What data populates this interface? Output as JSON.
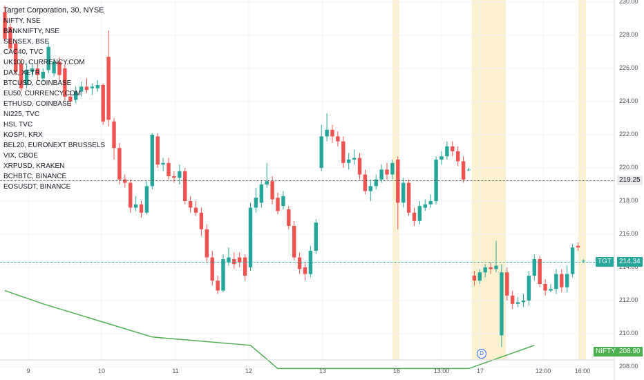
{
  "header": {
    "title": "Target Corporation, 30, NYSE"
  },
  "comparison_symbols": [
    "NIFTY, NSE",
    "BANKNIFTY, NSE",
    "SENSEX, BSE",
    "CAC40, TVC",
    "UK100, CURRENCY.COM",
    "DAX, XETR",
    "BTCUSD, COINBASE",
    "EU50, CURRENCY.COM",
    "ETHUSD, COINBASE",
    "NI225, TVC",
    "HSI, TVC",
    "KOSPI, KRX",
    "BEL20, EURONEXT BRUSSELS",
    "VIX, CBOE",
    "XRPUSD, KRAKEN",
    "BCHBTC, BINANCE",
    "EOSUSDT, BINANCE"
  ],
  "price_labels": {
    "last_price": "219.25",
    "tgt_tag": "TGT",
    "tgt_price": "214.34",
    "nifty_tag": "NIFTY",
    "nifty_price": "208.90"
  },
  "dividend_marker": "D",
  "colors": {
    "up": "#26a69a",
    "down": "#ef5350",
    "nifty_line": "#4caf50",
    "session_highlight": "#fdf2d0",
    "tgt_tag_bg": "#26a69a",
    "nifty_tag_bg": "#4caf50"
  },
  "chart_data": {
    "type": "candlestick",
    "title": "Target Corporation, 30, NYSE",
    "ylim": [
      208,
      230
    ],
    "yticks": [
      "230.00",
      "228.00",
      "226.00",
      "224.00",
      "222.00",
      "220.00",
      "218.00",
      "216.00",
      "214.00",
      "212.00",
      "210.00",
      "208.00"
    ],
    "xticks": [
      "9",
      "10",
      "11",
      "12",
      "13",
      "16",
      "13:00",
      "17",
      "12:00",
      "16:00"
    ],
    "grid": true,
    "legend": "top-left",
    "candles": [
      {
        "o": 229.4,
        "c": 227.8,
        "h": 229.8,
        "l": 227.6
      },
      {
        "o": 228.5,
        "c": 227.2,
        "h": 228.7,
        "l": 227.0
      },
      {
        "o": 227.5,
        "c": 225.8,
        "h": 227.7,
        "l": 225.6
      },
      {
        "o": 226.3,
        "c": 224.8,
        "h": 226.6,
        "l": 224.6
      },
      {
        "o": 225.0,
        "c": 225.9,
        "h": 226.3,
        "l": 224.8
      },
      {
        "o": 225.8,
        "c": 226.0,
        "h": 226.3,
        "l": 225.5
      },
      {
        "o": 226.0,
        "c": 225.6,
        "h": 226.3,
        "l": 225.3
      },
      {
        "o": 225.4,
        "c": 225.8,
        "h": 226.0,
        "l": 225.2
      },
      {
        "o": 225.9,
        "c": 227.3,
        "h": 227.6,
        "l": 225.7
      },
      {
        "o": 225.7,
        "c": 226.4,
        "h": 226.6,
        "l": 225.5
      },
      {
        "o": 226.4,
        "c": 225.6,
        "h": 226.7,
        "l": 225.3
      },
      {
        "o": 226.0,
        "c": 224.3,
        "h": 226.3,
        "l": 224.0
      },
      {
        "o": 224.3,
        "c": 224.0,
        "h": 224.6,
        "l": 223.7
      },
      {
        "o": 224.1,
        "c": 224.6,
        "h": 224.9,
        "l": 223.9
      },
      {
        "o": 224.6,
        "c": 224.9,
        "h": 225.2,
        "l": 224.3
      },
      {
        "o": 224.9,
        "c": 224.7,
        "h": 225.4,
        "l": 224.5
      },
      {
        "o": 224.8,
        "c": 224.9,
        "h": 225.1,
        "l": 224.4
      },
      {
        "o": 224.8,
        "c": 225.0,
        "h": 225.3,
        "l": 224.6
      },
      {
        "o": 225.0,
        "c": 222.8,
        "h": 225.1,
        "l": 222.6
      },
      {
        "o": 226.7,
        "c": 222.9,
        "h": 228.3,
        "l": 222.5
      },
      {
        "o": 222.8,
        "c": 221.2,
        "h": 223.0,
        "l": 220.5
      },
      {
        "o": 221.2,
        "c": 219.3,
        "h": 221.5,
        "l": 219.0
      },
      {
        "o": 219.3,
        "c": 219.1,
        "h": 219.6,
        "l": 218.8
      },
      {
        "o": 219.1,
        "c": 217.6,
        "h": 219.3,
        "l": 217.3
      },
      {
        "o": 217.6,
        "c": 217.8,
        "h": 218.3,
        "l": 217.4
      },
      {
        "o": 217.8,
        "c": 217.3,
        "h": 218.0,
        "l": 217.0
      },
      {
        "o": 217.3,
        "c": 218.9,
        "h": 219.2,
        "l": 217.2
      },
      {
        "o": 218.9,
        "c": 222.0,
        "h": 222.1,
        "l": 218.7
      },
      {
        "o": 221.9,
        "c": 220.2,
        "h": 222.1,
        "l": 220.0
      },
      {
        "o": 220.2,
        "c": 220.3,
        "h": 220.6,
        "l": 219.8
      },
      {
        "o": 220.3,
        "c": 219.5,
        "h": 220.6,
        "l": 219.3
      },
      {
        "o": 219.5,
        "c": 219.4,
        "h": 219.8,
        "l": 219.1
      },
      {
        "o": 219.4,
        "c": 219.8,
        "h": 220.2,
        "l": 219.0
      },
      {
        "o": 219.8,
        "c": 218.0,
        "h": 220.0,
        "l": 217.8
      },
      {
        "o": 218.0,
        "c": 217.6,
        "h": 218.3,
        "l": 217.3
      },
      {
        "o": 217.6,
        "c": 217.3,
        "h": 218.0,
        "l": 217.1
      },
      {
        "o": 217.3,
        "c": 216.3,
        "h": 217.6,
        "l": 215.9
      },
      {
        "o": 216.3,
        "c": 214.6,
        "h": 216.6,
        "l": 214.3
      },
      {
        "o": 214.6,
        "c": 213.2,
        "h": 215.0,
        "l": 212.9
      },
      {
        "o": 213.2,
        "c": 212.6,
        "h": 213.5,
        "l": 212.4
      },
      {
        "o": 212.6,
        "c": 214.5,
        "h": 214.8,
        "l": 212.5
      },
      {
        "o": 214.3,
        "c": 214.6,
        "h": 215.2,
        "l": 214.1
      },
      {
        "o": 214.5,
        "c": 214.2,
        "h": 214.9,
        "l": 213.9
      },
      {
        "o": 214.6,
        "c": 214.3,
        "h": 214.9,
        "l": 214.0
      },
      {
        "o": 214.6,
        "c": 213.5,
        "h": 214.8,
        "l": 213.2
      },
      {
        "o": 214.0,
        "c": 217.6,
        "h": 217.9,
        "l": 213.8
      },
      {
        "o": 217.6,
        "c": 218.2,
        "h": 218.8,
        "l": 217.3
      },
      {
        "o": 217.9,
        "c": 219.0,
        "h": 219.2,
        "l": 217.6
      },
      {
        "o": 219.0,
        "c": 219.2,
        "h": 220.3,
        "l": 218.8
      },
      {
        "o": 219.2,
        "c": 218.1,
        "h": 219.5,
        "l": 217.8
      },
      {
        "o": 218.2,
        "c": 217.4,
        "h": 218.5,
        "l": 217.2
      },
      {
        "o": 217.7,
        "c": 218.3,
        "h": 218.6,
        "l": 217.5
      },
      {
        "o": 217.5,
        "c": 216.5,
        "h": 217.7,
        "l": 216.3
      },
      {
        "o": 216.5,
        "c": 214.6,
        "h": 216.8,
        "l": 214.4
      },
      {
        "o": 214.6,
        "c": 213.9,
        "h": 214.9,
        "l": 213.6
      },
      {
        "o": 214.0,
        "c": 213.6,
        "h": 214.3,
        "l": 213.2
      },
      {
        "o": 213.6,
        "c": 215.0,
        "h": 215.3,
        "l": 213.4
      },
      {
        "o": 215.0,
        "c": 216.7,
        "h": 216.9,
        "l": 214.8
      },
      {
        "o": 220.0,
        "c": 221.9,
        "h": 222.6,
        "l": 219.8
      },
      {
        "o": 221.9,
        "c": 222.3,
        "h": 223.3,
        "l": 221.6
      },
      {
        "o": 222.3,
        "c": 221.9,
        "h": 222.6,
        "l": 221.5
      },
      {
        "o": 221.9,
        "c": 221.6,
        "h": 222.2,
        "l": 221.3
      },
      {
        "o": 221.6,
        "c": 220.3,
        "h": 221.9,
        "l": 220.0
      },
      {
        "o": 220.3,
        "c": 220.5,
        "h": 220.9,
        "l": 219.9
      },
      {
        "o": 220.5,
        "c": 220.6,
        "h": 221.1,
        "l": 220.2
      },
      {
        "o": 220.6,
        "c": 219.6,
        "h": 220.9,
        "l": 219.3
      },
      {
        "o": 219.6,
        "c": 218.6,
        "h": 219.9,
        "l": 218.4
      },
      {
        "o": 218.6,
        "c": 218.9,
        "h": 219.3,
        "l": 218.0
      },
      {
        "o": 218.9,
        "c": 219.3,
        "h": 219.6,
        "l": 218.7
      },
      {
        "o": 219.3,
        "c": 219.9,
        "h": 220.2,
        "l": 219.1
      },
      {
        "o": 219.9,
        "c": 219.6,
        "h": 220.3,
        "l": 219.3
      },
      {
        "o": 219.6,
        "c": 220.3,
        "h": 220.5,
        "l": 219.3
      },
      {
        "o": 220.5,
        "c": 217.9,
        "h": 220.7,
        "l": 216.3
      },
      {
        "o": 217.9,
        "c": 219.1,
        "h": 219.4,
        "l": 217.6
      },
      {
        "o": 219.1,
        "c": 217.3,
        "h": 219.3,
        "l": 217.1
      },
      {
        "o": 217.3,
        "c": 216.8,
        "h": 217.6,
        "l": 216.5
      },
      {
        "o": 216.8,
        "c": 217.7,
        "h": 218.0,
        "l": 216.6
      },
      {
        "o": 217.6,
        "c": 217.8,
        "h": 218.1,
        "l": 217.4
      },
      {
        "o": 217.8,
        "c": 218.0,
        "h": 218.4,
        "l": 217.6
      },
      {
        "o": 218.0,
        "c": 220.5,
        "h": 220.7,
        "l": 217.8
      },
      {
        "o": 220.5,
        "c": 220.7,
        "h": 221.0,
        "l": 220.2
      },
      {
        "o": 220.7,
        "c": 221.3,
        "h": 221.6,
        "l": 220.5
      },
      {
        "o": 221.3,
        "c": 221.0,
        "h": 221.6,
        "l": 220.7
      },
      {
        "o": 221.0,
        "c": 220.4,
        "h": 221.3,
        "l": 220.1
      },
      {
        "o": 220.4,
        "c": 219.3,
        "h": 220.7,
        "l": 219.1
      },
      {
        "o": 219.9,
        "c": 219.9,
        "h": 220.0,
        "l": 219.8
      },
      {
        "o": 213.5,
        "c": 213.2,
        "h": 213.8,
        "l": 212.9
      },
      {
        "o": 213.2,
        "c": 213.7,
        "h": 213.9,
        "l": 213.0
      },
      {
        "o": 213.7,
        "c": 214.0,
        "h": 214.2,
        "l": 213.4
      },
      {
        "o": 214.0,
        "c": 213.9,
        "h": 214.3,
        "l": 213.6
      },
      {
        "o": 213.9,
        "c": 214.1,
        "h": 215.6,
        "l": 213.7
      },
      {
        "o": 209.9,
        "c": 213.7,
        "h": 214.2,
        "l": 209.2
      },
      {
        "o": 213.7,
        "c": 212.3,
        "h": 214.0,
        "l": 212.0
      },
      {
        "o": 212.3,
        "c": 211.8,
        "h": 212.6,
        "l": 211.5
      },
      {
        "o": 211.8,
        "c": 211.9,
        "h": 212.2,
        "l": 211.6
      },
      {
        "o": 211.9,
        "c": 212.0,
        "h": 212.4,
        "l": 211.6
      },
      {
        "o": 212.0,
        "c": 213.5,
        "h": 213.8,
        "l": 211.7
      },
      {
        "o": 213.5,
        "c": 214.5,
        "h": 214.8,
        "l": 213.2
      },
      {
        "o": 214.5,
        "c": 213.0,
        "h": 214.7,
        "l": 212.8
      },
      {
        "o": 213.0,
        "c": 212.6,
        "h": 213.3,
        "l": 212.3
      },
      {
        "o": 212.6,
        "c": 212.7,
        "h": 213.0,
        "l": 212.5
      },
      {
        "o": 212.7,
        "c": 213.6,
        "h": 213.9,
        "l": 212.4
      },
      {
        "o": 213.6,
        "c": 212.8,
        "h": 213.9,
        "l": 212.5
      },
      {
        "o": 212.8,
        "c": 213.6,
        "h": 214.1,
        "l": 212.5
      },
      {
        "o": 213.6,
        "c": 215.2,
        "h": 215.4,
        "l": 213.4
      },
      {
        "o": 215.3,
        "c": 215.2,
        "h": 215.5,
        "l": 215.0
      },
      {
        "o": 214.4,
        "c": 214.4,
        "h": 214.5,
        "l": 214.3
      }
    ],
    "series": [
      {
        "name": "NIFTY",
        "points": [
          [
            0,
            212.6
          ],
          [
            7,
            211.8
          ],
          [
            27,
            209.8
          ],
          [
            45,
            209.3
          ],
          [
            50,
            207.9
          ],
          [
            85,
            207.9
          ],
          [
            97,
            209.3
          ]
        ]
      }
    ]
  }
}
